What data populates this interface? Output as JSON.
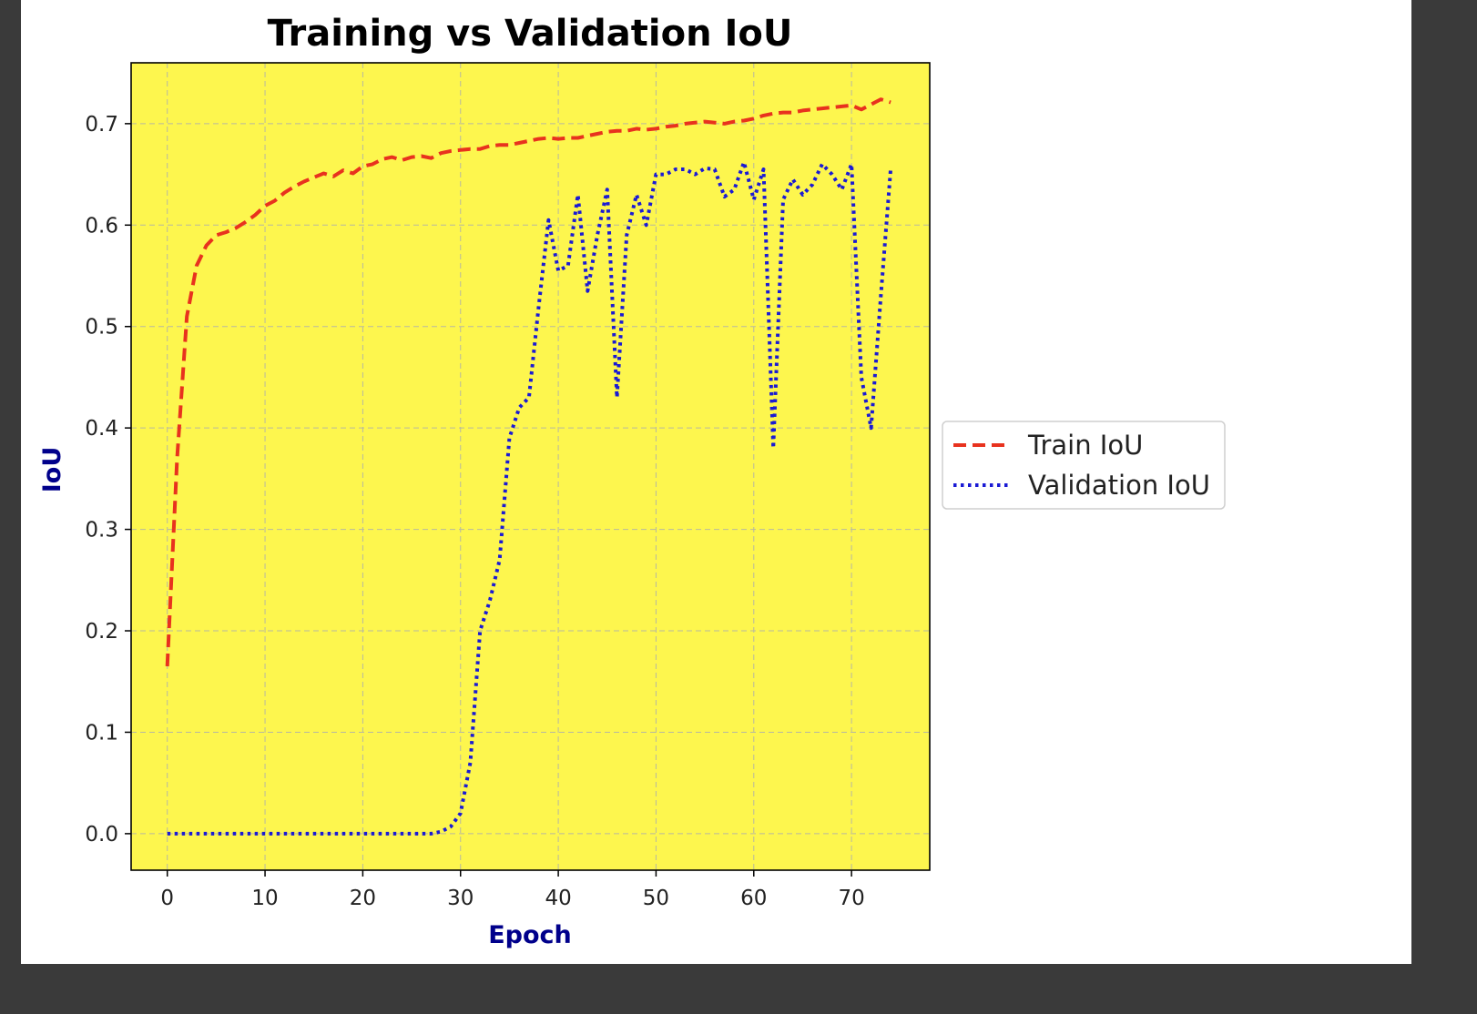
{
  "chart_data": {
    "type": "line",
    "title": "Training vs Validation IoU",
    "xlabel": "Epoch",
    "ylabel": "IoU",
    "xlim": [
      -3.7,
      78
    ],
    "ylim": [
      -0.036,
      0.76
    ],
    "xticks": [
      0,
      10,
      20,
      30,
      40,
      50,
      60,
      70
    ],
    "yticks": [
      0.0,
      0.1,
      0.2,
      0.3,
      0.4,
      0.5,
      0.6,
      0.7
    ],
    "ytick_labels": [
      "0.0",
      "0.1",
      "0.2",
      "0.3",
      "0.4",
      "0.5",
      "0.6",
      "0.7"
    ],
    "grid": true,
    "background_color": "#fdf64e",
    "legend_position": "center right (outside plot)",
    "series": [
      {
        "name": "Train IoU",
        "color": "#e8321e",
        "style": "dashed",
        "x": [
          0,
          1,
          2,
          3,
          4,
          5,
          6,
          7,
          8,
          9,
          10,
          11,
          12,
          13,
          14,
          15,
          16,
          17,
          18,
          19,
          20,
          21,
          22,
          23,
          24,
          25,
          26,
          27,
          28,
          29,
          30,
          31,
          32,
          33,
          34,
          35,
          36,
          37,
          38,
          39,
          40,
          41,
          42,
          43,
          44,
          45,
          46,
          47,
          48,
          49,
          50,
          51,
          52,
          53,
          54,
          55,
          56,
          57,
          58,
          59,
          60,
          61,
          62,
          63,
          64,
          65,
          66,
          67,
          68,
          69,
          70,
          71,
          72,
          73,
          74
        ],
        "y": [
          0.165,
          0.37,
          0.51,
          0.56,
          0.58,
          0.59,
          0.593,
          0.597,
          0.603,
          0.61,
          0.619,
          0.624,
          0.632,
          0.638,
          0.643,
          0.647,
          0.651,
          0.648,
          0.654,
          0.651,
          0.658,
          0.66,
          0.665,
          0.667,
          0.664,
          0.667,
          0.668,
          0.666,
          0.671,
          0.673,
          0.674,
          0.675,
          0.675,
          0.678,
          0.679,
          0.679,
          0.681,
          0.683,
          0.685,
          0.686,
          0.685,
          0.686,
          0.686,
          0.688,
          0.69,
          0.692,
          0.693,
          0.693,
          0.695,
          0.694,
          0.695,
          0.697,
          0.698,
          0.7,
          0.701,
          0.702,
          0.701,
          0.7,
          0.702,
          0.703,
          0.705,
          0.708,
          0.71,
          0.711,
          0.711,
          0.713,
          0.714,
          0.715,
          0.716,
          0.717,
          0.718,
          0.714,
          0.719,
          0.724,
          0.721
        ]
      },
      {
        "name": "Validation IoU",
        "color": "#1a1ad4",
        "style": "dotted",
        "x": [
          0,
          1,
          2,
          3,
          4,
          5,
          6,
          7,
          8,
          9,
          10,
          11,
          12,
          13,
          14,
          15,
          16,
          17,
          18,
          19,
          20,
          21,
          22,
          23,
          24,
          25,
          26,
          27,
          28,
          29,
          30,
          31,
          32,
          33,
          34,
          35,
          36,
          37,
          38,
          39,
          40,
          41,
          42,
          43,
          44,
          45,
          46,
          47,
          48,
          49,
          50,
          51,
          52,
          53,
          54,
          55,
          56,
          57,
          58,
          59,
          60,
          61,
          62,
          63,
          64,
          65,
          66,
          67,
          68,
          69,
          70,
          71,
          72,
          73,
          74
        ],
        "y": [
          0.0,
          0.0,
          0.0,
          0.0,
          0.0,
          0.0,
          0.0,
          0.0,
          0.0,
          0.0,
          0.0,
          0.0,
          0.0,
          0.0,
          0.0,
          0.0,
          0.0,
          0.0,
          0.0,
          0.0,
          0.0,
          0.0,
          0.0,
          0.0,
          0.0,
          0.0,
          0.0,
          0.0,
          0.002,
          0.007,
          0.02,
          0.07,
          0.2,
          0.23,
          0.27,
          0.39,
          0.42,
          0.43,
          0.52,
          0.605,
          0.555,
          0.56,
          0.63,
          0.535,
          0.59,
          0.635,
          0.43,
          0.59,
          0.63,
          0.6,
          0.65,
          0.65,
          0.655,
          0.655,
          0.65,
          0.656,
          0.655,
          0.628,
          0.635,
          0.662,
          0.625,
          0.655,
          0.38,
          0.625,
          0.645,
          0.63,
          0.64,
          0.66,
          0.65,
          0.635,
          0.66,
          0.45,
          0.4,
          0.53,
          0.655
        ]
      }
    ]
  }
}
